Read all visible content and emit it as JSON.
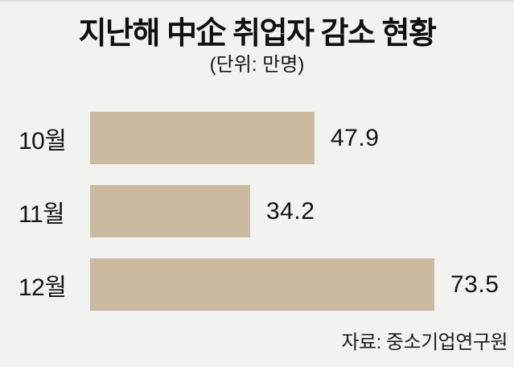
{
  "chart_data": {
    "type": "bar",
    "orientation": "horizontal",
    "title": "지난해 中企 취업자 감소 현황",
    "unit_label": "(단위: 만명)",
    "source": "자료: 중소기업연구원",
    "categories": [
      "10월",
      "11월",
      "12월"
    ],
    "values": [
      47.9,
      34.2,
      73.5
    ],
    "value_labels": [
      "47.9",
      "34.2",
      "73.5"
    ],
    "xlabel": "",
    "ylabel": "",
    "xlim": [
      0,
      73.5
    ],
    "grid": false,
    "legend": false,
    "bar_color": "#cbb9a0",
    "background_color": "#f2f2f1",
    "text_color": "#141414"
  }
}
